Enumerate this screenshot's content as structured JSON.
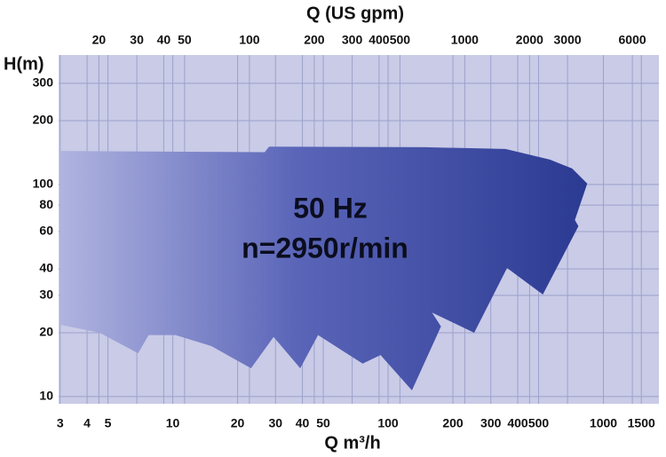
{
  "chart_data": {
    "type": "area",
    "title": "Q (US gpm)",
    "x_label": "Q m³/h",
    "y_label": "H(m)",
    "annotations": [
      "50 Hz",
      "n=2950r/min"
    ],
    "log_x": true,
    "log_y": true,
    "grid": true,
    "background_color": "#c9cbe7",
    "grid_color": "#9da1cb",
    "colors": [
      "#b0b4e0",
      "#5a65b8",
      "#2b3a92"
    ],
    "xlim": [
      2.95,
      1810
    ],
    "x2lim": [
      13,
      7970
    ],
    "ylim": [
      9.25,
      408
    ],
    "xticks": [
      3,
      4,
      5,
      10,
      20,
      30,
      40,
      50,
      100,
      200,
      300,
      400,
      500,
      1000,
      1500
    ],
    "x2ticks": [
      20,
      30,
      40,
      50,
      100,
      200,
      300,
      400,
      500,
      1000,
      2000,
      3000,
      6000
    ],
    "yticks": [
      10,
      20,
      30,
      40,
      60,
      80,
      100,
      200,
      300
    ],
    "outline": {
      "x": [
        3,
        26.7,
        28,
        149,
        351,
        565,
        716,
        841,
        737,
        766,
        523,
        357,
        251,
        160,
        176,
        129,
        92.2,
        76.2,
        47.3,
        39.1,
        29.4,
        23.1,
        15.1,
        10.3,
        7.73,
        6.9,
        4.58,
        3
      ],
      "y": [
        144,
        142,
        151,
        150,
        147,
        131,
        119,
        101,
        68,
        63.6,
        30.3,
        40.4,
        20,
        24.9,
        21.4,
        10.7,
        15.7,
        14.3,
        19.5,
        13.6,
        19.1,
        13.6,
        17.3,
        19.5,
        19.5,
        16,
        20,
        21.8
      ]
    }
  }
}
